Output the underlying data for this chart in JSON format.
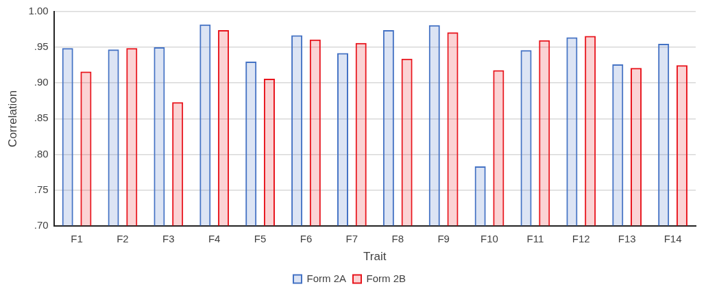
{
  "chart_data": {
    "type": "bar",
    "xlabel": "Trait",
    "ylabel": "Correlation",
    "categories": [
      "F1",
      "F2",
      "F3",
      "F4",
      "F5",
      "F6",
      "F7",
      "F8",
      "F9",
      "F10",
      "F11",
      "F12",
      "F13",
      "F14"
    ],
    "series": [
      {
        "name": "Form 2A",
        "color": "#4472c4",
        "values": [
          0.949,
          0.947,
          0.95,
          0.982,
          0.93,
          0.967,
          0.942,
          0.974,
          0.981,
          0.783,
          0.946,
          0.964,
          0.926,
          0.955
        ]
      },
      {
        "name": "Form 2B",
        "color": "#e8141c",
        "values": [
          0.916,
          0.949,
          0.873,
          0.974,
          0.906,
          0.961,
          0.956,
          0.934,
          0.971,
          0.918,
          0.96,
          0.966,
          0.921,
          0.925
        ]
      }
    ],
    "ylim": [
      0.7,
      1.0
    ],
    "yticks": [
      {
        "value": 0.7,
        "label": ".70"
      },
      {
        "value": 0.75,
        "label": ".75"
      },
      {
        "value": 0.8,
        "label": ".80"
      },
      {
        "value": 0.85,
        "label": ".85"
      },
      {
        "value": 0.9,
        "label": ".90"
      },
      {
        "value": 0.95,
        "label": ".95"
      },
      {
        "value": 1.0,
        "label": "1.00"
      }
    ],
    "grid": "y",
    "legend": "bottom"
  }
}
